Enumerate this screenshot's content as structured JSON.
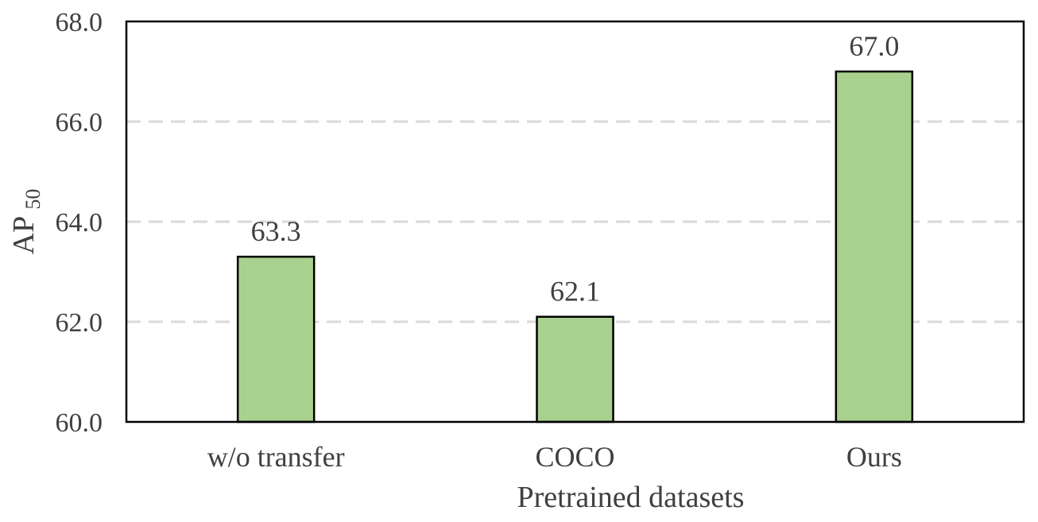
{
  "chart_data": {
    "type": "bar",
    "categories": [
      "w/o transfer",
      "COCO",
      "Ours"
    ],
    "series": [
      {
        "values": [
          63.3,
          62.1,
          67.0
        ]
      }
    ],
    "data_labels": [
      "63.3",
      "62.1",
      "67.0"
    ],
    "xlabel": "Pretrained datasets",
    "ylabel": "AP",
    "ylabel_subscript": "50",
    "ylim": [
      60.0,
      68.0
    ],
    "yticks": [
      60.0,
      62.0,
      64.0,
      66.0,
      68.0
    ],
    "ytick_labels": [
      "60.0",
      "62.0",
      "64.0",
      "66.0",
      "68.0"
    ],
    "grid": "horizontal dashed",
    "legend": "none",
    "bar_color": "#a9d18e",
    "bar_edge_color": "#000000",
    "grid_color": "#d9d9d9"
  }
}
